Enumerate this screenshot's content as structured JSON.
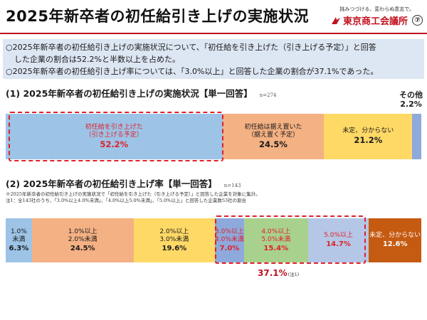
{
  "header": {
    "title": "2025年新卒者の初任給引き上げの実施状況",
    "slogan": "挑みつづける、変わらぬ意志で。",
    "logo_text": "東京商工会議所",
    "page_number": "⑦",
    "accent_color": "#c0121f"
  },
  "summary": {
    "line1": "○2025年新卒者の初任給引き上げの実施状況について、「初任給を引き上げた（引き上げる予定）」と回答",
    "line2": "した企業の割合は52.2%と半数以上を占めた。",
    "line3": "○2025年新卒者の初任給引き上げ率については、「3.0%以上」と回答した企業の割合が37.1%であった。"
  },
  "section1": {
    "heading": "(1) 2025年新卒者の初任給引き上げの実施状況【単一回答】",
    "n": "n=274"
  },
  "section2": {
    "heading": "(2) 2025年新卒者の初任給引き上げ率【単一回答】",
    "n": "n=143",
    "note1": "※2025年新卒者の初任給引き上げの実施状況で「初任給を引き上げた（引き上げる予定）」と回答した企業を対象に集計。",
    "note2": "注1：全143社のうち、「3.0%以上4.0%未満」、「4.0%以上5.0%未満」、「5.0%以上」と回答した企業数53社の割合",
    "total_value": "37.1%",
    "total_note": "(注1)"
  },
  "chart_data": [
    {
      "type": "bar",
      "stacked": "horizontal-100%",
      "title": "(1) 2025年新卒者の初任給引き上げの実施状況【単一回答】",
      "categories": [
        "初任給を引き上げた（引き上げる予定）",
        "初任給は据え置いた（据え置く予定）",
        "未定、分からない",
        "その他"
      ],
      "values": [
        52.2,
        24.5,
        21.2,
        2.2
      ],
      "segments": [
        {
          "line1": "初任給を引き上げた",
          "line2": "（引き上げる予定）",
          "value": 52.2,
          "value_label": "52.2%",
          "color": "#9dc3e6",
          "text_color": "#e0202a"
        },
        {
          "line1": "初任給は据え置いた",
          "line2": "（据え置く予定）",
          "value": 24.5,
          "value_label": "24.5%",
          "color": "#f4b183",
          "text_color": "#1a1a1a"
        },
        {
          "line1": "未定、分からない",
          "line2": "",
          "value": 21.2,
          "value_label": "21.2%",
          "color": "#ffd966",
          "text_color": "#1a1a1a"
        },
        {
          "line1": "その他",
          "line2": "",
          "value": 2.2,
          "value_label": "2.2%",
          "color": "#8eaadb",
          "text_color": "#1a1a1a"
        }
      ]
    },
    {
      "type": "bar",
      "stacked": "horizontal-100%",
      "title": "(2) 2025年新卒者の初任給引き上げ率【単一回答】",
      "categories": [
        "1.0%未満",
        "1.0%以上2.0%未満",
        "2.0%以上3.0%未満",
        "3.0%以上4.0%未満",
        "4.0%以上5.0%未満",
        "5.0%以上",
        "未定、分からない"
      ],
      "values": [
        6.3,
        24.5,
        19.6,
        7.0,
        15.4,
        14.7,
        12.6
      ],
      "segments": [
        {
          "line1": "1.0%",
          "line2": "未満",
          "value": 6.3,
          "value_label": "6.3%",
          "color": "#9dc3e6",
          "text_color": "#1a1a1a"
        },
        {
          "line1": "1.0%以上",
          "line2": "2.0%未満",
          "value": 24.5,
          "value_label": "24.5%",
          "color": "#f4b183",
          "text_color": "#1a1a1a"
        },
        {
          "line1": "2.0%以上",
          "line2": "3.0%未満",
          "value": 19.6,
          "value_label": "19.6%",
          "color": "#ffd966",
          "text_color": "#1a1a1a"
        },
        {
          "line1": "3.0%以上",
          "line2": "4.0%未満",
          "value": 7.0,
          "value_label": "7.0%",
          "color": "#8ea9db",
          "text_color": "#e0202a"
        },
        {
          "line1": "4.0%以上",
          "line2": "5.0%未満",
          "value": 15.4,
          "value_label": "15.4%",
          "color": "#a9d18e",
          "text_color": "#e0202a"
        },
        {
          "line1": "5.0%以上",
          "line2": "",
          "value": 14.7,
          "value_label": "14.7%",
          "color": "#b4c7e7",
          "text_color": "#e0202a"
        },
        {
          "line1": "未定、分からない",
          "line2": "",
          "value": 12.6,
          "value_label": "12.6%",
          "color": "#c55a11",
          "text_color": "#ffffff"
        }
      ]
    }
  ]
}
